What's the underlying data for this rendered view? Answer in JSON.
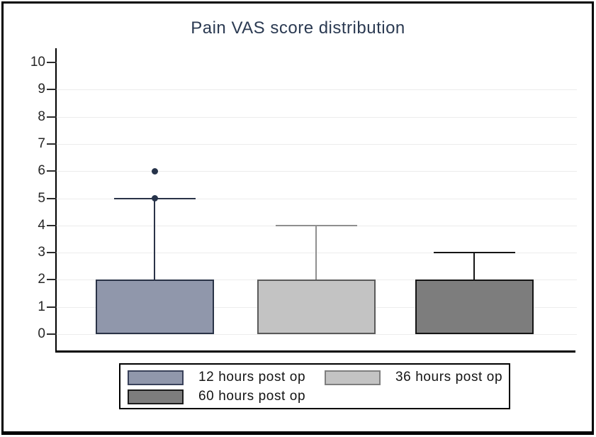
{
  "title": "Pain VAS score distribution",
  "title_color": "#2b3a52",
  "chart_data": {
    "type": "box",
    "title": "Pain VAS score distribution",
    "xlabel": "",
    "ylabel": "",
    "ylim": [
      0,
      10
    ],
    "yticks": [
      0,
      1,
      2,
      3,
      4,
      5,
      6,
      7,
      8,
      9,
      10
    ],
    "grid": true,
    "legend_position": "bottom",
    "categories": [
      "12 hours post op",
      "36 hours post op",
      "60 hours post op"
    ],
    "series": [
      {
        "name": "12 hours post op",
        "box_low": 0,
        "box_high": 2,
        "whisker_high": 5,
        "outliers": [
          5,
          6
        ],
        "fill": "#9097ab",
        "border": "#2a3347",
        "whisker_color": "#2a3347"
      },
      {
        "name": "36 hours post op",
        "box_low": 0,
        "box_high": 2,
        "whisker_high": 4,
        "outliers": [],
        "fill": "#c3c3c3",
        "border": "#5a5a5a",
        "whisker_color": "#8f8f8f"
      },
      {
        "name": "60 hours post op",
        "box_low": 0,
        "box_high": 2,
        "whisker_high": 3,
        "outliers": [],
        "fill": "#7d7d7d",
        "border": "#151515",
        "whisker_color": "#151515"
      }
    ],
    "outlier_color": "#26334a"
  },
  "legend": {
    "rows": [
      [
        {
          "label": "12 hours post op",
          "color": "#9097ab",
          "border": "#39415a"
        },
        {
          "label": "36 hours post op",
          "color": "#c3c3c3",
          "border": "#7e7e7e"
        }
      ],
      [
        {
          "label": "60 hours post op",
          "color": "#7d7d7d",
          "border": "#1c1c1c"
        }
      ]
    ]
  }
}
